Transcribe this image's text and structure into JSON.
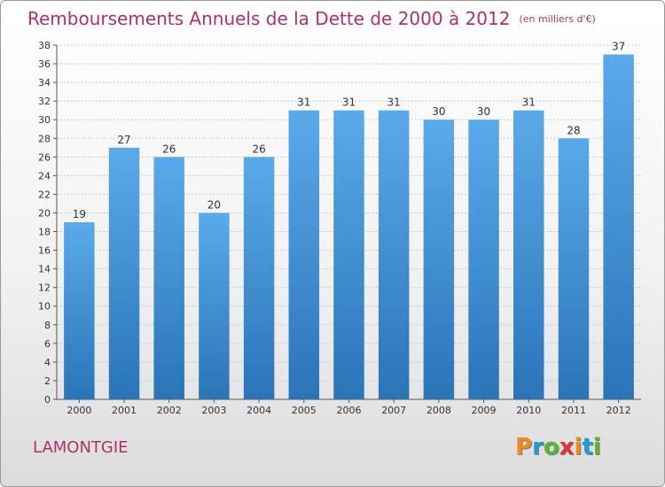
{
  "header": {
    "title": "Remboursements Annuels de la Dette de 2000 à 2012",
    "unit": "(en milliers d'€)"
  },
  "footer": {
    "commune": "LAMONTGIE",
    "logo_text": "Proxiti",
    "logo_colors": [
      "#f18a1c",
      "#1f9dd9",
      "#5cb531",
      "#e3342f",
      "#f18a1c",
      "#1f9dd9",
      "#5cb531"
    ]
  },
  "chart_data": {
    "type": "bar",
    "title": "Remboursements Annuels de la Dette de 2000 à 2012",
    "xlabel": "",
    "ylabel": "",
    "categories": [
      "2000",
      "2001",
      "2002",
      "2003",
      "2004",
      "2005",
      "2006",
      "2007",
      "2008",
      "2009",
      "2010",
      "2011",
      "2012"
    ],
    "values": [
      19,
      27,
      26,
      20,
      26,
      31,
      31,
      31,
      30,
      30,
      31,
      28,
      37
    ],
    "data_labels": [
      "19",
      "27",
      "26",
      "20",
      "26",
      "31",
      "31",
      "31",
      "30",
      "30",
      "31",
      "28",
      "37"
    ],
    "ylim": [
      0,
      38
    ],
    "yticks": [
      0,
      2,
      4,
      6,
      8,
      10,
      12,
      14,
      16,
      18,
      20,
      22,
      24,
      26,
      28,
      30,
      32,
      34,
      36,
      38
    ],
    "grid": true,
    "legend": "none",
    "bar_color": "#3d8fd6",
    "bar_color_light": "#5aaaeb",
    "bar_color_dark": "#2a74b8"
  }
}
